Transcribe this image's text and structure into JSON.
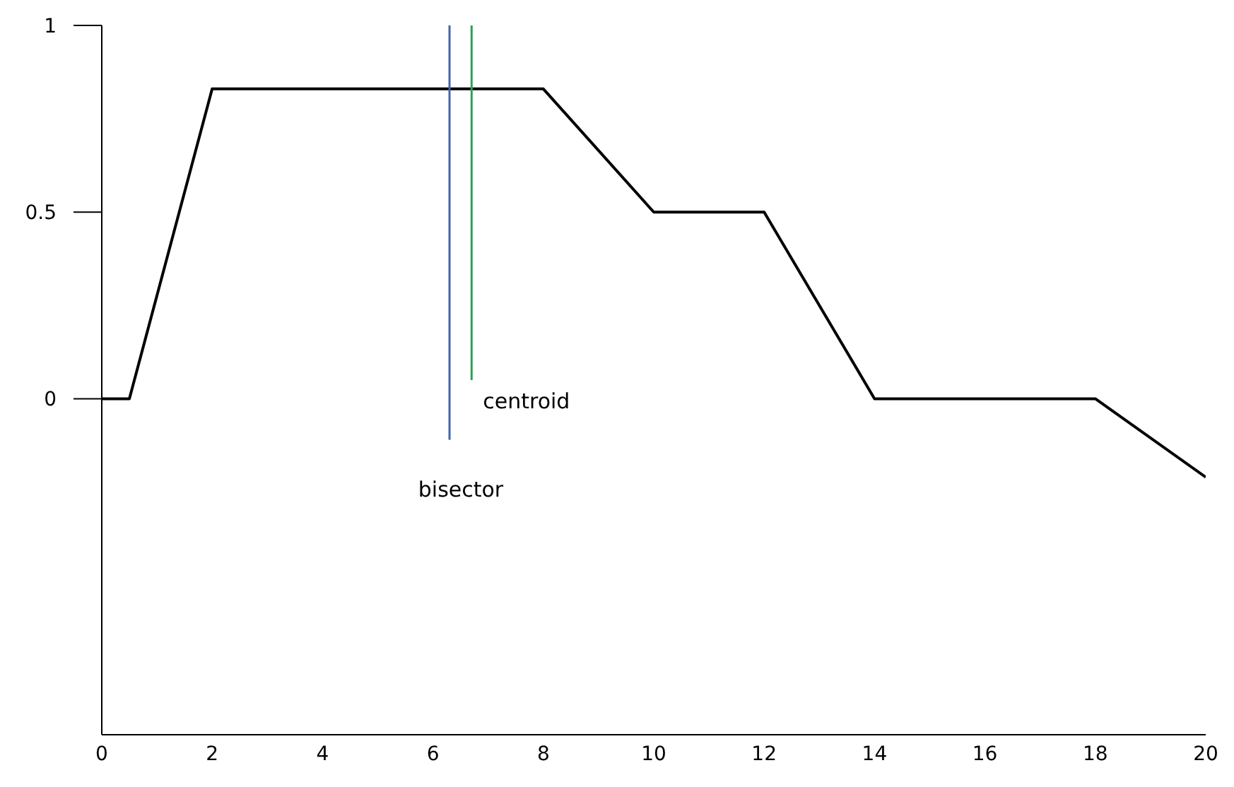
{
  "chart_data": {
    "type": "line",
    "xlim": [
      0,
      20
    ],
    "xticks": [
      0,
      2,
      4,
      6,
      8,
      10,
      12,
      14,
      16,
      18,
      20
    ],
    "ylim": [
      -0.9,
      1
    ],
    "yticks": [
      0,
      0.5,
      1
    ],
    "grid": false,
    "marker": "none",
    "line_style": "solid",
    "series": [
      {
        "color": "#000000",
        "x": [
          0,
          0.5,
          2,
          8,
          10,
          12,
          14,
          18,
          20
        ],
        "values": [
          0,
          0,
          0.83,
          0.83,
          0.5,
          0.5,
          0,
          0,
          -0.21
        ]
      },
      {
        "name": "bisector",
        "color": "#3f66a8",
        "x": [
          6.3,
          6.3
        ],
        "values": [
          1,
          -0.11
        ]
      },
      {
        "name": "centroid",
        "color": "#2e9e58",
        "x": [
          6.7,
          6.7
        ],
        "values": [
          1,
          0.05
        ]
      }
    ]
  }
}
